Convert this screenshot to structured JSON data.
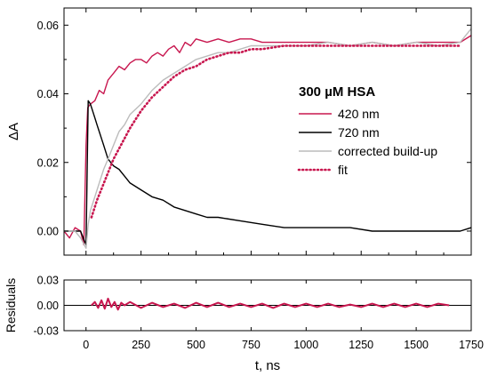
{
  "chart_data": [
    {
      "type": "line",
      "xlabel": "",
      "ylabel": "ΔA",
      "xlim": [
        -100,
        1750
      ],
      "ylim": [
        -0.007,
        0.065
      ],
      "xticks": [
        0,
        250,
        500,
        750,
        1000,
        1250,
        1500,
        1750
      ],
      "xtick_labels": [
        "0",
        "250",
        "500",
        "750",
        "1000",
        "1250",
        "1500",
        "1750"
      ],
      "yticks": [
        0.0,
        0.02,
        0.04,
        0.06
      ],
      "ytick_labels": [
        "0.00",
        "0.02",
        "0.04",
        "0.06"
      ],
      "legend_title": "300 µM HSA",
      "legend_position": "center-right",
      "grid": false,
      "series": [
        {
          "name": "420 nm",
          "color": "#c8174f",
          "style": "solid",
          "x": [
            -100,
            -75,
            -50,
            -25,
            -10,
            0,
            8,
            20,
            40,
            60,
            80,
            100,
            125,
            150,
            175,
            200,
            225,
            250,
            275,
            300,
            325,
            350,
            375,
            400,
            425,
            450,
            475,
            500,
            550,
            600,
            650,
            700,
            750,
            800,
            900,
            1000,
            1100,
            1200,
            1300,
            1400,
            1500,
            1600,
            1700,
            1750
          ],
          "y": [
            0.0,
            -0.002,
            0.001,
            0.0,
            -0.004,
            0.025,
            0.036,
            0.037,
            0.038,
            0.041,
            0.04,
            0.044,
            0.046,
            0.048,
            0.047,
            0.049,
            0.05,
            0.05,
            0.049,
            0.051,
            0.052,
            0.051,
            0.053,
            0.054,
            0.052,
            0.055,
            0.054,
            0.056,
            0.055,
            0.056,
            0.055,
            0.056,
            0.056,
            0.055,
            0.055,
            0.055,
            0.055,
            0.054,
            0.055,
            0.054,
            0.055,
            0.055,
            0.055,
            0.057
          ]
        },
        {
          "name": "720 nm",
          "color": "#000000",
          "style": "solid",
          "x": [
            -100,
            -75,
            -50,
            -25,
            0,
            10,
            20,
            30,
            40,
            50,
            60,
            70,
            80,
            100,
            125,
            150,
            175,
            200,
            250,
            300,
            350,
            400,
            450,
            500,
            550,
            600,
            700,
            800,
            900,
            1000,
            1100,
            1200,
            1300,
            1400,
            1500,
            1600,
            1700,
            1750
          ],
          "y": [
            0.0,
            0.0,
            0.0,
            0.0,
            -0.004,
            0.038,
            0.037,
            0.035,
            0.033,
            0.031,
            0.029,
            0.027,
            0.025,
            0.021,
            0.019,
            0.018,
            0.016,
            0.014,
            0.012,
            0.01,
            0.009,
            0.007,
            0.006,
            0.005,
            0.004,
            0.004,
            0.003,
            0.002,
            0.001,
            0.001,
            0.001,
            0.001,
            0.0,
            0.0,
            0.0,
            0.0,
            0.0,
            0.001
          ]
        },
        {
          "name": "corrected build-up",
          "color": "#bcbcbc",
          "style": "solid",
          "x": [
            -100,
            -50,
            -25,
            0,
            10,
            20,
            40,
            60,
            80,
            100,
            125,
            150,
            175,
            200,
            250,
            300,
            350,
            400,
            450,
            500,
            550,
            600,
            650,
            700,
            750,
            800,
            900,
            1000,
            1100,
            1200,
            1300,
            1400,
            1500,
            1600,
            1700,
            1750
          ],
          "y": [
            0.0,
            0.0,
            -0.002,
            -0.005,
            0.002,
            0.006,
            0.01,
            0.014,
            0.018,
            0.021,
            0.025,
            0.029,
            0.031,
            0.034,
            0.037,
            0.041,
            0.044,
            0.046,
            0.048,
            0.05,
            0.051,
            0.052,
            0.052,
            0.053,
            0.054,
            0.054,
            0.054,
            0.054,
            0.055,
            0.054,
            0.055,
            0.054,
            0.055,
            0.054,
            0.055,
            0.059
          ]
        },
        {
          "name": "fit",
          "color": "#c8174f",
          "style": "dotted",
          "x": [
            25,
            50,
            75,
            100,
            125,
            150,
            175,
            200,
            250,
            300,
            350,
            400,
            450,
            500,
            550,
            600,
            650,
            700,
            750,
            800,
            900,
            1000,
            1100,
            1200,
            1300,
            1400,
            1500,
            1600,
            1700
          ],
          "y": [
            0.004,
            0.009,
            0.013,
            0.017,
            0.021,
            0.024,
            0.027,
            0.03,
            0.035,
            0.039,
            0.042,
            0.045,
            0.047,
            0.048,
            0.05,
            0.051,
            0.052,
            0.052,
            0.053,
            0.053,
            0.054,
            0.054,
            0.054,
            0.054,
            0.054,
            0.054,
            0.054,
            0.054,
            0.054
          ]
        }
      ]
    },
    {
      "type": "line",
      "xlabel": "t, ns",
      "ylabel": "Residuals",
      "xlim": [
        -100,
        1750
      ],
      "ylim": [
        -0.03,
        0.03
      ],
      "xticks": [
        0,
        250,
        500,
        750,
        1000,
        1250,
        1500,
        1750
      ],
      "xtick_labels": [
        "0",
        "250",
        "500",
        "750",
        "1000",
        "1250",
        "1500",
        "1750"
      ],
      "yticks": [
        -0.03,
        0.0,
        0.03
      ],
      "ytick_labels": [
        "-0.03",
        "0.00",
        "0.03"
      ],
      "grid": false,
      "zero_line": true,
      "series": [
        {
          "name": "",
          "color": "#c8174f",
          "style": "solid",
          "x": [
            25,
            40,
            55,
            70,
            85,
            100,
            115,
            130,
            145,
            160,
            175,
            200,
            250,
            300,
            350,
            400,
            450,
            500,
            550,
            600,
            650,
            700,
            750,
            800,
            850,
            900,
            950,
            1000,
            1050,
            1100,
            1150,
            1200,
            1250,
            1300,
            1350,
            1400,
            1450,
            1500,
            1550,
            1600,
            1650
          ],
          "y": [
            0.0,
            0.004,
            -0.003,
            0.006,
            -0.004,
            0.008,
            -0.002,
            0.004,
            -0.005,
            0.003,
            0.0,
            0.004,
            -0.003,
            0.003,
            -0.002,
            0.002,
            -0.003,
            0.003,
            -0.002,
            0.003,
            -0.002,
            0.002,
            -0.002,
            0.002,
            -0.003,
            0.002,
            -0.002,
            0.002,
            -0.002,
            0.002,
            -0.002,
            0.001,
            -0.002,
            0.002,
            -0.002,
            0.002,
            -0.002,
            0.002,
            -0.002,
            0.002,
            0.0
          ]
        }
      ]
    }
  ]
}
